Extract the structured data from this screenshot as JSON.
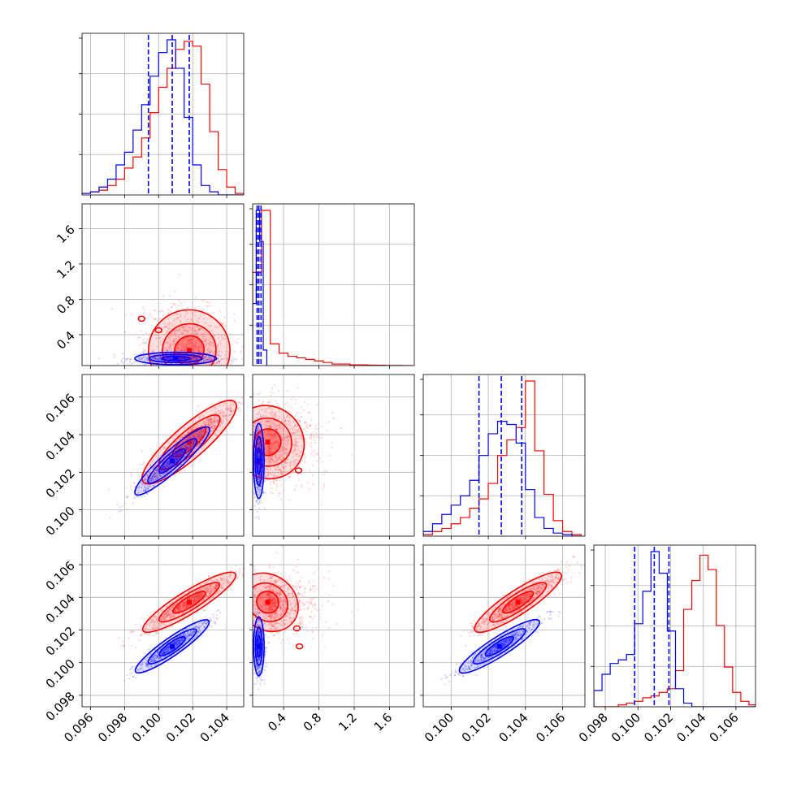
{
  "chart_data": {
    "type": "corner",
    "parameters": 4,
    "colors": {
      "series_a": "#ff0000",
      "series_b": "#0000ff"
    },
    "grid": true,
    "legend": "none",
    "quantile_lines_series": "series_b",
    "axes": {
      "p1": {
        "range": [
          0.0955,
          0.105
        ],
        "ticks": [
          0.096,
          0.098,
          0.1,
          0.102,
          0.104
        ],
        "tick_labels": [
          "0.096",
          "0.098",
          "0.100",
          "0.102",
          "0.104"
        ]
      },
      "p2": {
        "range": [
          0.05,
          1.88
        ],
        "ticks": [
          0.4,
          0.8,
          1.2,
          1.6
        ],
        "tick_labels": [
          "0.4",
          "0.8",
          "1.2",
          "1.6"
        ]
      },
      "p3": {
        "range": [
          0.0985,
          0.1072
        ],
        "ticks": [
          0.1,
          0.102,
          0.104,
          0.106
        ],
        "tick_labels": [
          "0.100",
          "0.102",
          "0.104",
          "0.106"
        ]
      },
      "p3_row": {
        "range": [
          0.0986,
          0.1072
        ],
        "ticks": [
          0.1,
          0.102,
          0.104,
          0.106
        ],
        "tick_labels": [
          "0.100",
          "0.102",
          "0.104",
          "0.106"
        ]
      },
      "p4": {
        "range": [
          0.0973,
          0.1072
        ],
        "ticks": [
          0.098,
          0.1,
          0.102,
          0.104,
          0.106
        ],
        "tick_labels": [
          "0.098",
          "0.100",
          "0.102",
          "0.104",
          "0.106"
        ]
      }
    },
    "histograms": [
      {
        "param": "p1",
        "bins": [
          0.0955,
          0.096,
          0.0965,
          0.097,
          0.0975,
          0.098,
          0.0985,
          0.099,
          0.0995,
          0.1,
          0.1005,
          0.101,
          0.1015,
          0.102,
          0.1025,
          0.103,
          0.1035,
          0.104,
          0.1045,
          0.105
        ],
        "series_a": [
          0.01,
          0.02,
          0.03,
          0.06,
          0.1,
          0.17,
          0.24,
          0.36,
          0.52,
          0.68,
          0.8,
          0.92,
          0.97,
          0.94,
          0.7,
          0.4,
          0.16,
          0.05,
          0.01
        ],
        "series_b": [
          0.01,
          0.02,
          0.05,
          0.1,
          0.19,
          0.27,
          0.41,
          0.57,
          0.75,
          0.9,
          0.98,
          0.8,
          0.49,
          0.19,
          0.06,
          0.02,
          0.0,
          0.0,
          0.0
        ],
        "quantiles_b": [
          0.0994,
          0.1008,
          0.1018
        ]
      },
      {
        "param": "p2",
        "bins": [
          0.05,
          0.15,
          0.25,
          0.35,
          0.45,
          0.55,
          0.65,
          0.75,
          0.85,
          0.95,
          1.05,
          1.15,
          1.25,
          1.35,
          1.45,
          1.55,
          1.65,
          1.75,
          1.85
        ],
        "series_a": [
          0.6,
          1.0,
          0.14,
          0.08,
          0.06,
          0.05,
          0.04,
          0.03,
          0.02,
          0.01,
          0.01,
          0.005,
          0.005,
          0.003,
          0.002,
          0.001,
          0.001,
          0.0
        ],
        "series_b": [
          0.55,
          0.0,
          0.0,
          0.0,
          0.0,
          0.0,
          0.0,
          0.0,
          0.0,
          0.0,
          0.0,
          0.0,
          0.0,
          0.0,
          0.0,
          0.0,
          0.0,
          0.0
        ],
        "series_b_fine": {
          "bins": [
            0.05,
            0.09,
            0.13,
            0.17,
            0.21
          ],
          "values": [
            0.4,
            1.0,
            0.8,
            0.1
          ]
        },
        "quantiles_b": [
          0.1,
          0.12,
          0.145
        ]
      },
      {
        "param": "p3",
        "bins": [
          0.0985,
          0.099,
          0.0995,
          0.1,
          0.1005,
          0.101,
          0.1015,
          0.102,
          0.1025,
          0.103,
          0.1035,
          0.104,
          0.1045,
          0.105,
          0.1055,
          0.106,
          0.1065,
          0.107
        ],
        "series_a": [
          0.01,
          0.03,
          0.05,
          0.08,
          0.12,
          0.18,
          0.24,
          0.34,
          0.52,
          0.62,
          0.7,
          1.0,
          0.55,
          0.27,
          0.1,
          0.03,
          0.01
        ],
        "series_b": [
          0.03,
          0.08,
          0.14,
          0.2,
          0.26,
          0.36,
          0.52,
          0.66,
          0.74,
          0.72,
          0.6,
          0.3,
          0.12,
          0.05,
          0.02,
          0.01,
          0.0
        ],
        "quantiles_b": [
          0.1015,
          0.1027,
          0.1038
        ]
      },
      {
        "param": "p4",
        "bins": [
          0.0973,
          0.0978,
          0.0983,
          0.0988,
          0.0993,
          0.0998,
          0.1003,
          0.1008,
          0.1013,
          0.1018,
          0.1023,
          0.1028,
          0.1033,
          0.1038,
          0.1043,
          0.1048,
          0.1053,
          0.1058,
          0.1063,
          0.1068,
          0.1072
        ],
        "series_a": [
          0.0,
          0.0,
          0.0,
          0.01,
          0.02,
          0.03,
          0.05,
          0.06,
          0.08,
          0.1,
          0.2,
          0.54,
          0.7,
          0.84,
          0.76,
          0.45,
          0.22,
          0.08,
          0.03,
          0.01
        ],
        "series_b": [
          0.09,
          0.18,
          0.24,
          0.26,
          0.29,
          0.46,
          0.64,
          0.86,
          0.74,
          0.42,
          0.1,
          0.02,
          0.0,
          0.0,
          0.0,
          0.0,
          0.0,
          0.0,
          0.0,
          0.0
        ],
        "quantiles_b": [
          0.0998,
          0.101,
          0.1019
        ]
      }
    ],
    "scatter_panels": [
      {
        "x": "p1",
        "y": "p2",
        "series_a": {
          "center": [
            0.1018,
            0.22
          ],
          "sx": 0.0013,
          "sy": 0.26,
          "rho": -0.2,
          "extra": [
            [
              0.099,
              0.58
            ],
            [
              0.1,
              0.45
            ]
          ]
        },
        "series_b": {
          "center": [
            0.101,
            0.13
          ],
          "sx": 0.0012,
          "sy": 0.035,
          "rho": 0.0
        }
      },
      {
        "x": "p1",
        "y": "p3_row",
        "series_a": {
          "center": [
            0.1018,
            0.1036
          ],
          "sx": 0.0014,
          "sy": 0.0011,
          "rho": 0.92
        },
        "series_b": {
          "center": [
            0.1008,
            0.1026
          ],
          "sx": 0.0011,
          "sy": 0.0009,
          "rho": 0.96
        }
      },
      {
        "x": "p2",
        "y": "p3_row",
        "series_a": {
          "center": [
            0.22,
            0.1036
          ],
          "sx": 0.22,
          "sy": 0.0011,
          "rho": -0.25,
          "extra": [
            [
              0.57,
              0.1021
            ]
          ]
        },
        "series_b": {
          "center": [
            0.12,
            0.1026
          ],
          "sx": 0.03,
          "sy": 0.001,
          "rho": 0.0
        }
      },
      {
        "x": "p1",
        "y": "p4",
        "series_a": {
          "center": [
            0.1018,
            0.1037
          ],
          "sx": 0.0014,
          "sy": 0.0009,
          "rho": 0.93
        },
        "series_b": {
          "center": [
            0.1008,
            0.101
          ],
          "sx": 0.0011,
          "sy": 0.0008,
          "rho": 0.95
        }
      },
      {
        "x": "p2",
        "y": "p4",
        "series_a": {
          "center": [
            0.22,
            0.1037
          ],
          "sx": 0.22,
          "sy": 0.0009,
          "rho": -0.25,
          "extra": [
            [
              0.55,
              0.1021
            ],
            [
              0.58,
              0.101
            ]
          ]
        },
        "series_b": {
          "center": [
            0.12,
            0.101
          ],
          "sx": 0.03,
          "sy": 0.0009,
          "rho": 0.0
        }
      },
      {
        "x": "p3",
        "y": "p4",
        "series_a": {
          "center": [
            0.1036,
            0.1037
          ],
          "sx": 0.0012,
          "sy": 0.0009,
          "rho": 0.92
        },
        "series_b": {
          "center": [
            0.1026,
            0.101
          ],
          "sx": 0.0011,
          "sy": 0.0008,
          "rho": 0.94
        }
      }
    ]
  }
}
